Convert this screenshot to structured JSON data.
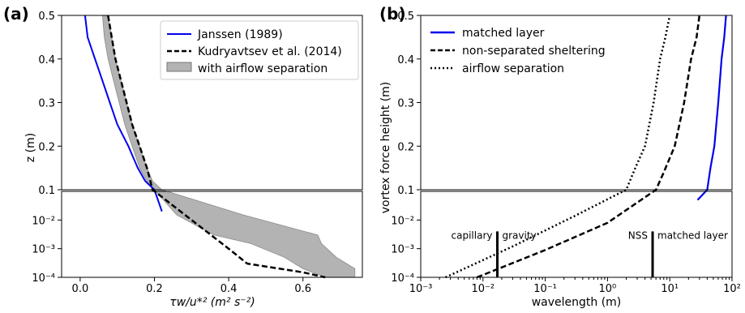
{
  "chart_data": [
    {
      "panel_label": "(a)",
      "type": "line",
      "xlabel": "τw/u*² (m² s⁻²)",
      "ylabel": "z (m)",
      "xlim": [
        -0.05,
        0.76
      ],
      "x_ticks": [
        "0.0",
        "0.2",
        "0.4",
        "0.6"
      ],
      "upper_y_ticks": [
        "0.1",
        "0.2",
        "0.3",
        "0.4",
        "0.5"
      ],
      "lower_y_ticks": [
        "10⁻²",
        "10⁻³",
        "10⁻⁴"
      ],
      "upper_ylim": [
        0.1,
        0.5
      ],
      "lower_ylim": [
        0.0001,
        0.1
      ],
      "lower_yscale": "log",
      "grid": false,
      "legend_position": "upper-right",
      "legend": [
        {
          "label": "Janssen (1989)",
          "style": "solid",
          "color": "#0000ee"
        },
        {
          "label": "Kudryavtsev et al. (2014)",
          "style": "dashed",
          "color": "#000000"
        },
        {
          "label": "with airflow separation",
          "style": "fill",
          "color": "#b3b3b3"
        }
      ],
      "series": [
        {
          "name": "Janssen (1989)",
          "color": "#0000ee",
          "style": "solid",
          "x": [
            0.013,
            0.02,
            0.04,
            0.06,
            0.08,
            0.1,
            0.13,
            0.155,
            0.175,
            0.2,
            0.22
          ],
          "y": [
            0.5,
            0.45,
            0.4,
            0.35,
            0.3,
            0.25,
            0.2,
            0.15,
            0.12,
            0.1,
            0.02
          ]
        },
        {
          "name": "Kudryavtsev et al. (2014)",
          "color": "#000000",
          "style": "dashed",
          "x": [
            0.075,
            0.085,
            0.095,
            0.11,
            0.125,
            0.14,
            0.16,
            0.18,
            0.195,
            0.3,
            0.4,
            0.45,
            0.6,
            0.66
          ],
          "y": [
            0.5,
            0.45,
            0.4,
            0.35,
            0.3,
            0.25,
            0.2,
            0.15,
            0.1,
            0.01,
            0.001,
            0.0003,
            0.00015,
            0.0001
          ]
        },
        {
          "name": "with airflow separation",
          "color": "#b3b3b3",
          "style": "band",
          "x_lower": [
            0.06,
            0.065,
            0.075,
            0.09,
            0.105,
            0.12,
            0.14,
            0.16,
            0.18,
            0.2,
            0.26,
            0.36,
            0.46,
            0.55,
            0.6,
            0.66
          ],
          "x_upper": [
            0.075,
            0.085,
            0.095,
            0.11,
            0.125,
            0.14,
            0.16,
            0.18,
            0.195,
            0.22,
            0.44,
            0.64,
            0.65,
            0.69,
            0.74,
            0.74
          ],
          "y": [
            0.5,
            0.45,
            0.4,
            0.35,
            0.3,
            0.25,
            0.2,
            0.15,
            0.12,
            0.1,
            0.015,
            0.003,
            0.0015,
            0.0005,
            0.0002,
            0.0001
          ]
        }
      ]
    },
    {
      "panel_label": "(b)",
      "type": "line",
      "xlabel": "wavelength (m)",
      "ylabel": "vortex force height (m)",
      "xscale": "log",
      "xlim": [
        0.001,
        100
      ],
      "x_ticks": [
        "10⁻³",
        "10⁻²",
        "10⁻¹",
        "10⁰",
        "10¹",
        "10²"
      ],
      "upper_y_ticks": [
        "0.1",
        "0.2",
        "0.3",
        "0.4",
        "0.5"
      ],
      "lower_y_ticks": [
        "10⁻²",
        "10⁻³",
        "10⁻⁴"
      ],
      "upper_ylim": [
        0.1,
        0.5
      ],
      "lower_ylim": [
        0.0001,
        0.1
      ],
      "lower_yscale": "log",
      "grid": false,
      "legend_position": "upper-left",
      "legend": [
        {
          "label": "matched layer",
          "style": "solid",
          "color": "#0000ee"
        },
        {
          "label": "non-separated sheltering",
          "style": "dashed",
          "color": "#000000"
        },
        {
          "label": "airflow separation",
          "style": "dotted",
          "color": "#000000"
        }
      ],
      "series": [
        {
          "name": "matched layer",
          "color": "#0000ee",
          "style": "solid",
          "x": [
            28,
            40,
            45,
            52,
            60,
            68,
            75,
            80
          ],
          "y": [
            0.05,
            0.1,
            0.15,
            0.2,
            0.3,
            0.4,
            0.45,
            0.5
          ]
        },
        {
          "name": "non-separated sheltering",
          "color": "#000000",
          "style": "dashed",
          "x": [
            0.008,
            0.1,
            1.0,
            6.0,
            8.0,
            12.0,
            17.0,
            22.0,
            27.0,
            30.0
          ],
          "y": [
            0.0001,
            0.0009,
            0.008,
            0.1,
            0.14,
            0.2,
            0.3,
            0.4,
            0.45,
            0.5
          ]
        },
        {
          "name": "airflow separation",
          "color": "#000000",
          "style": "dotted",
          "x": [
            0.0025,
            0.03,
            0.3,
            2.0,
            2.8,
            4.0,
            5.5,
            7.0,
            8.5,
            10.0
          ],
          "y": [
            0.0001,
            0.0012,
            0.014,
            0.1,
            0.15,
            0.2,
            0.3,
            0.4,
            0.45,
            0.5
          ]
        }
      ],
      "markers": [
        {
          "x": 0.017,
          "left_label": "capillary",
          "right_label": "gravity",
          "y_top": 0.004,
          "y_bottom": 0.0001
        },
        {
          "x": 5.3,
          "left_label": "NSS",
          "right_label": "matched layer",
          "y_top": 0.004,
          "y_bottom": 0.0001
        }
      ]
    }
  ]
}
